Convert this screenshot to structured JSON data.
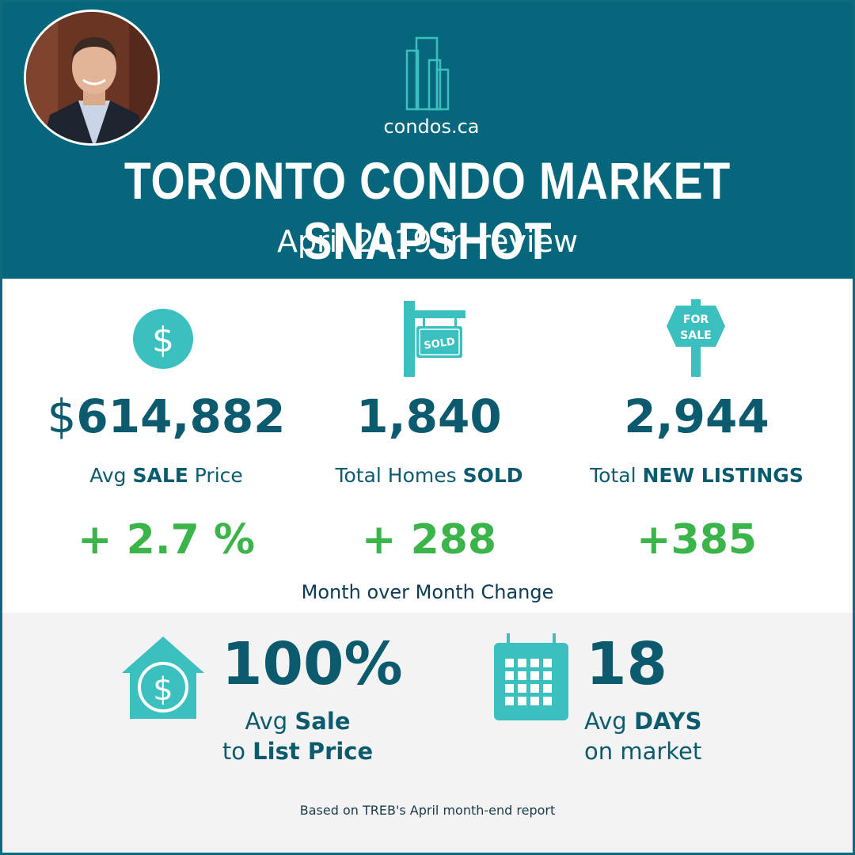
{
  "header": {
    "brand": "condos.ca",
    "title": "TORONTO CONDO MARKET SNAPSHOT",
    "subtitle": "April 2019 in review"
  },
  "stats": [
    {
      "icon": "dollar-circle-icon",
      "currency": "$",
      "value": "614,882",
      "label_pre": "Avg ",
      "label_bold": "SALE",
      "label_post": " Price",
      "change": "+ 2.7 %"
    },
    {
      "icon": "sold-sign-icon",
      "sign_text": "SOLD",
      "value": "1,840",
      "label_pre": "Total Homes ",
      "label_bold": "SOLD",
      "label_post": "",
      "change": "+ 288"
    },
    {
      "icon": "for-sale-sign-icon",
      "sign_text_1": "FOR",
      "sign_text_2": "SALE",
      "value": "2,944",
      "label_pre": "Total ",
      "label_bold": "NEW LISTINGS",
      "label_post": "",
      "change": "+385"
    }
  ],
  "change_caption": "Month over Month Change",
  "sale_to_list": {
    "icon": "house-dollar-icon",
    "value": "100%",
    "line1_pre": "Avg ",
    "line1_bold": "Sale",
    "line2_pre": "to ",
    "line2_bold": "List Price"
  },
  "days_on_market": {
    "icon": "calendar-icon",
    "value": "18",
    "line1_pre": "Avg ",
    "line1_bold": "DAYS",
    "line2": "on market"
  },
  "footnote": "Based on TREB's April month-end report",
  "colors": {
    "header_bg": "#06677c",
    "accent_teal": "#3cbfbf",
    "text_dark": "#0c5a6e",
    "positive_green": "#3bb54a"
  }
}
